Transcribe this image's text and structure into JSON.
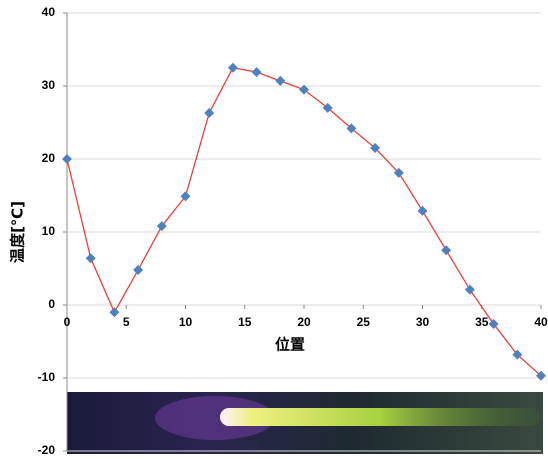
{
  "chart_data": {
    "type": "line",
    "x_label": "位置",
    "y_label": "温度[℃]",
    "x": [
      0,
      2,
      4,
      6,
      8,
      10,
      12,
      14,
      16,
      18,
      20,
      22,
      24,
      26,
      28,
      30,
      32,
      34,
      36,
      38,
      40
    ],
    "values": [
      20,
      6.4,
      -1.0,
      4.8,
      10.8,
      14.9,
      26.3,
      32.5,
      31.9,
      30.7,
      29.5,
      27.0,
      24.2,
      21.5,
      18.1,
      12.9,
      7.5,
      2.1,
      -2.6,
      -6.8,
      -9.7
    ],
    "line_color": "#e8413a",
    "marker_color": "#4f81bd",
    "xlim": [
      0,
      40
    ],
    "xticks": [
      0,
      5,
      10,
      15,
      20,
      25,
      30,
      35,
      40
    ],
    "ylim": [
      -20,
      40
    ],
    "yticks": [
      -20,
      -10,
      0,
      10,
      20,
      30,
      40
    ],
    "grid": true
  }
}
